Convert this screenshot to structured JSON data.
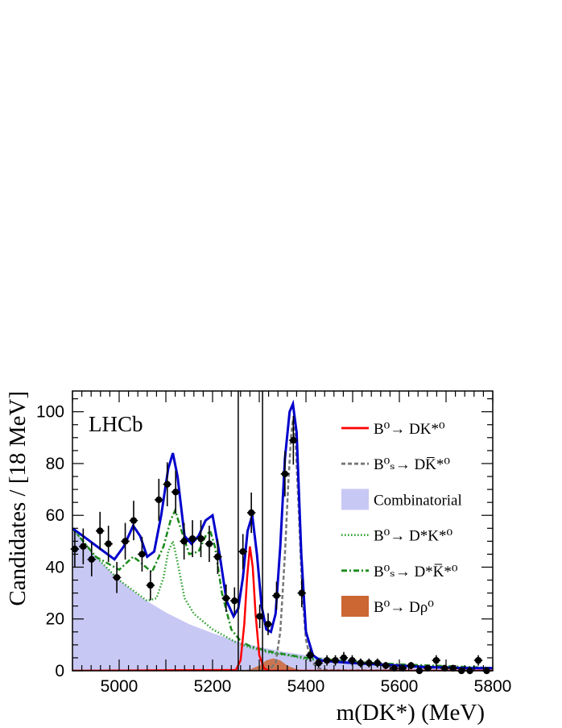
{
  "chart_data": {
    "type": "line",
    "experiment_label": "LHCb",
    "xlabel": "m(DK*) (MeV)",
    "ylabel": "Candidates / [18 MeV]",
    "xlim": [
      4900,
      5800
    ],
    "ylim": [
      0,
      108
    ],
    "x_ticks": [
      5000,
      5200,
      5400,
      5600,
      5800
    ],
    "y_ticks": [
      0,
      20,
      40,
      60,
      80,
      100
    ],
    "grid": false,
    "legend_position": "right",
    "signal_window_lines": [
      5255,
      5307
    ],
    "legend": [
      {
        "label": "B⁰→ DK*⁰",
        "style": "solid",
        "color": "#ff0000"
      },
      {
        "label": "B⁰ₛ→ DK̅*⁰",
        "style": "dashed",
        "color": "#777777"
      },
      {
        "label": "Combinatorial",
        "style": "fill",
        "color": "#c8c8f5"
      },
      {
        "label": "B⁰→ D*K*⁰",
        "style": "dotted",
        "color": "#2ba02b"
      },
      {
        "label": "B⁰ₛ→ D*K̅*⁰",
        "style": "dashdot",
        "color": "#1a8a1a"
      },
      {
        "label": "B⁰→ Dρ⁰",
        "style": "fill",
        "color": "#cc6633"
      }
    ],
    "colors": {
      "total_fit": "#0000cc",
      "data_points": "#000000",
      "window_lines": "#000000"
    },
    "data_points": {
      "x": [
        4905,
        4923,
        4941,
        4959,
        4977,
        4995,
        5013,
        5031,
        5049,
        5067,
        5085,
        5103,
        5121,
        5139,
        5157,
        5175,
        5193,
        5211,
        5229,
        5247,
        5265,
        5283,
        5301,
        5319,
        5337,
        5355,
        5373,
        5391,
        5409,
        5427,
        5445,
        5463,
        5481,
        5499,
        5517,
        5535,
        5553,
        5571,
        5589,
        5607,
        5625,
        5643,
        5661,
        5679,
        5697,
        5715,
        5733,
        5751,
        5769,
        5787
      ],
      "y": [
        47,
        48,
        43,
        54,
        49,
        36,
        50,
        58,
        45,
        33,
        66,
        72,
        69,
        50,
        51,
        51,
        49,
        44,
        28,
        27,
        46,
        61,
        21,
        18,
        29,
        76,
        89,
        30,
        6,
        3,
        4,
        4,
        5,
        4,
        3,
        3,
        3,
        2,
        1,
        1,
        2,
        0,
        1,
        4,
        1,
        1,
        0,
        0,
        4,
        0
      ]
    },
    "series": [
      {
        "name": "total_fit",
        "x": [
          4900,
          4930,
          4960,
          4990,
          5010,
          5030,
          5045,
          5060,
          5075,
          5090,
          5105,
          5115,
          5125,
          5140,
          5155,
          5170,
          5185,
          5200,
          5215,
          5230,
          5245,
          5255,
          5265,
          5275,
          5285,
          5295,
          5305,
          5315,
          5325,
          5335,
          5345,
          5355,
          5365,
          5372,
          5380,
          5390,
          5400,
          5415,
          5430,
          5460,
          5500,
          5550,
          5600,
          5650,
          5700,
          5750,
          5800
        ],
        "y": [
          55,
          51,
          47,
          43,
          48,
          56,
          52,
          44,
          46,
          60,
          78,
          84,
          75,
          52,
          49,
          52,
          58,
          60,
          45,
          27,
          21,
          24,
          36,
          54,
          60,
          45,
          25,
          16,
          15,
          22,
          48,
          82,
          100,
          103,
          92,
          45,
          15,
          6,
          4,
          3.5,
          3,
          2.5,
          2,
          1.5,
          1.2,
          1,
          1
        ]
      },
      {
        "name": "combinatorial",
        "x": [
          4900,
          4950,
          5000,
          5050,
          5100,
          5150,
          5200,
          5250,
          5300,
          5350,
          5400,
          5450,
          5500,
          5600,
          5700,
          5800
        ],
        "y": [
          55,
          44,
          35,
          28,
          22.5,
          18,
          14.5,
          11.5,
          9.2,
          7.4,
          6,
          4.8,
          3.9,
          2.6,
          1.7,
          1.1
        ]
      },
      {
        "name": "b0_dstar_kstar",
        "x": [
          4900,
          4950,
          5000,
          5030,
          5060,
          5080,
          5095,
          5105,
          5115,
          5125,
          5140,
          5160,
          5180,
          5200,
          5220,
          5250,
          5280,
          5320,
          5360,
          5400,
          5500,
          5600,
          5800
        ],
        "y": [
          55,
          44,
          35,
          31,
          27,
          28,
          36,
          46,
          50,
          42,
          28,
          22,
          19,
          16,
          14,
          11,
          9,
          7,
          6,
          4.5,
          3,
          2,
          1
        ]
      },
      {
        "name": "bs_dstar_kstarbar",
        "x": [
          4900,
          4950,
          5000,
          5030,
          5045,
          5070,
          5095,
          5110,
          5120,
          5130,
          5150,
          5170,
          5185,
          5195,
          5205,
          5220,
          5240,
          5260,
          5280,
          5320,
          5360,
          5400,
          5500,
          5600,
          5800
        ],
        "y": [
          55,
          44,
          39,
          44,
          42,
          38,
          48,
          58,
          62,
          56,
          45,
          46,
          52,
          54,
          48,
          30,
          16,
          11.5,
          9.5,
          7.5,
          6.2,
          5,
          3.5,
          2.5,
          1.1
        ]
      },
      {
        "name": "b0_d_rho",
        "x": [
          4900,
          5250,
          5280,
          5300,
          5315,
          5330,
          5345,
          5360,
          5380,
          5400,
          5800
        ],
        "y": [
          0,
          0,
          0.5,
          2,
          4,
          4.8,
          4,
          2,
          0.6,
          0,
          0
        ]
      },
      {
        "name": "bs_d_kstarbar",
        "x": [
          4900,
          5300,
          5320,
          5335,
          5345,
          5355,
          5362,
          5368,
          5372,
          5378,
          5385,
          5392,
          5400,
          5410,
          5425,
          5450,
          5800
        ],
        "y": [
          0,
          0,
          0.2,
          3,
          15,
          45,
          72,
          90,
          97,
          88,
          60,
          30,
          12,
          4,
          1,
          0.2,
          0
        ]
      },
      {
        "name": "b0_d_kstar",
        "x": [
          4900,
          5250,
          5260,
          5268,
          5274,
          5280,
          5286,
          5292,
          5300,
          5310,
          5320,
          5800
        ],
        "y": [
          0,
          0.3,
          4,
          18,
          36,
          48,
          40,
          22,
          6,
          1,
          0,
          0
        ]
      }
    ]
  }
}
